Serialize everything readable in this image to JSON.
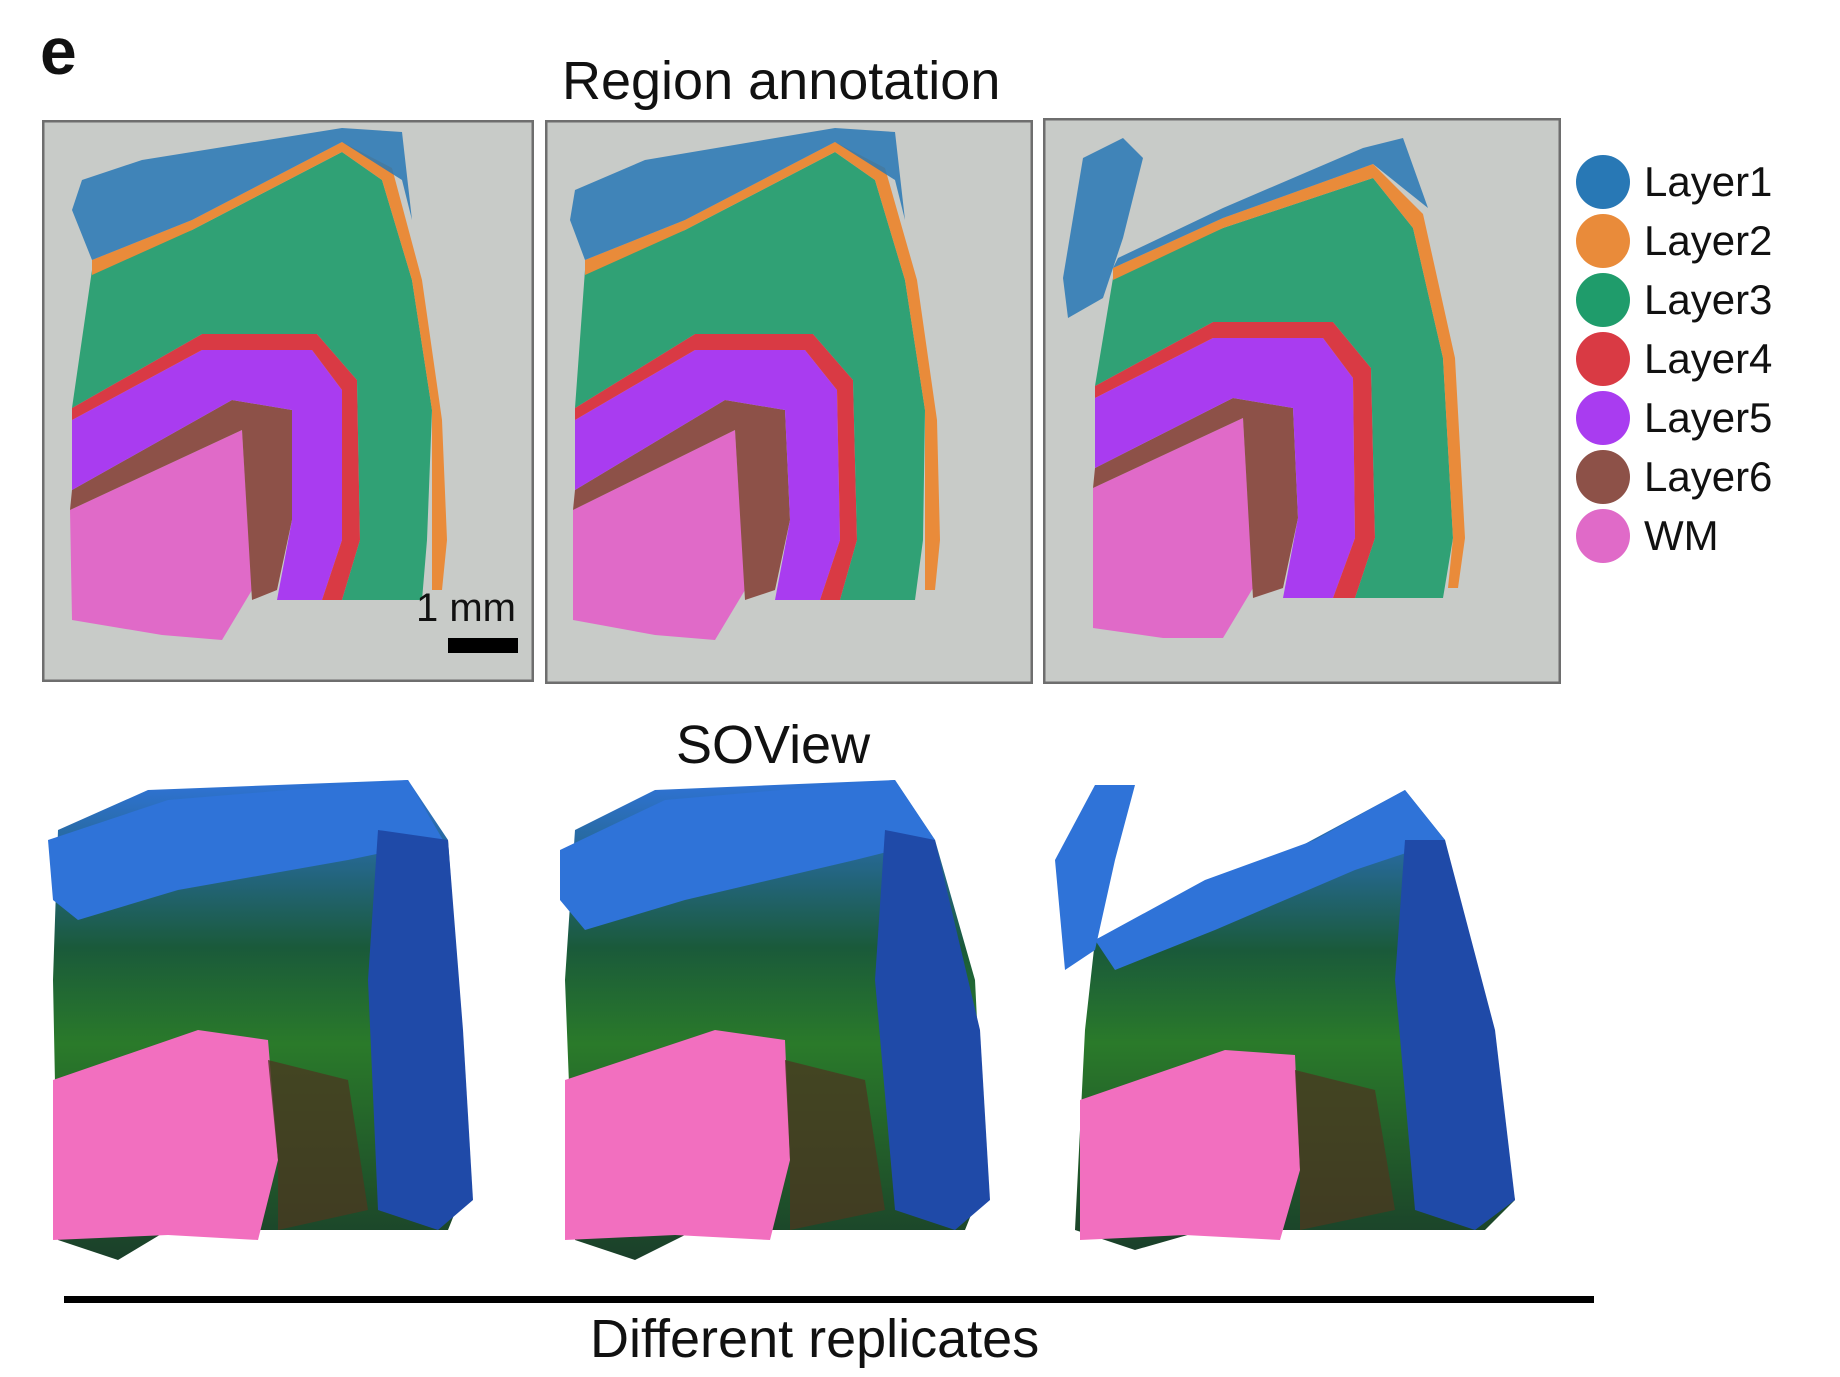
{
  "figure": {
    "panel_label": "e",
    "top_title": "Region annotation",
    "bottom_title": "SOView",
    "footer": "Different replicates",
    "scale_bar_label": "1 mm"
  },
  "legend": {
    "items": [
      {
        "label": "Layer1",
        "color": "#2878b5"
      },
      {
        "label": "Layer2",
        "color": "#e98b3a"
      },
      {
        "label": "Layer3",
        "color": "#1f9c6b"
      },
      {
        "label": "Layer4",
        "color": "#d93a44"
      },
      {
        "label": "Layer5",
        "color": "#a93cf0"
      },
      {
        "label": "Layer6",
        "color": "#8d5148"
      },
      {
        "label": "WM",
        "color": "#e06ac8"
      }
    ]
  },
  "slide_colors": {
    "background": "#c8cbc8",
    "border": "#6e6e6e"
  }
}
